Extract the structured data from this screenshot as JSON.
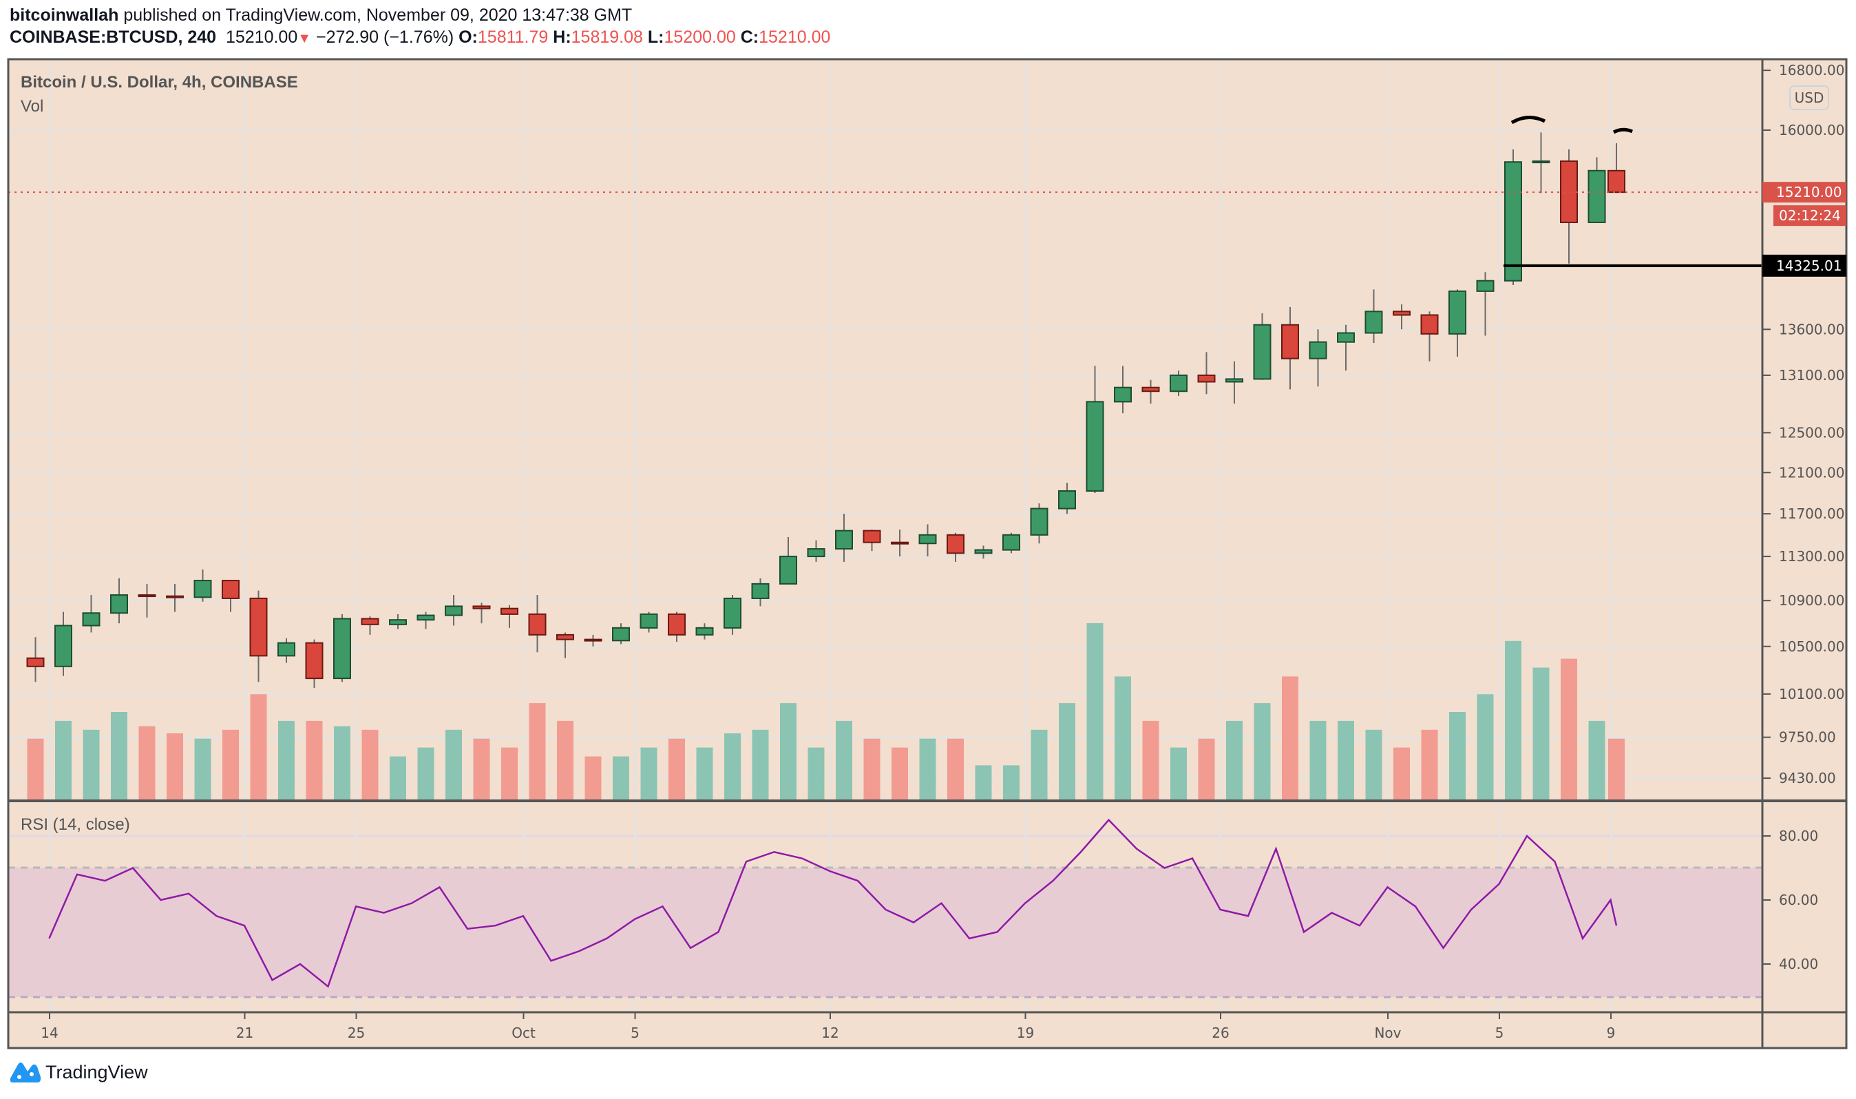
{
  "header": {
    "author": "bitcoinwallah",
    "published_text": "published on TradingView.com, November 09, 2020 13:47:38 GMT",
    "symbol": "COINBASE:BTCUSD, 240",
    "last": "15210.00",
    "change": "−272.90 (−1.76%)",
    "o_label": "O:",
    "o_value": "15811.79",
    "h_label": "H:",
    "h_value": "15819.08",
    "l_label": "L:",
    "l_value": "15200.00",
    "c_label": "C:",
    "c_value": "15210.00"
  },
  "main_pane": {
    "title": "Bitcoin / U.S. Dollar, 4h, COINBASE",
    "volume_label": "Vol",
    "currency_badge": "USD",
    "last_price_label": "15210.00",
    "countdown_label": "02:12:24",
    "level_label": "14325.01"
  },
  "rsi_pane": {
    "title": "RSI (14, close)",
    "ticks": [
      "80.00",
      "60.00",
      "40.00"
    ]
  },
  "footer": {
    "brand": "TradingView"
  },
  "colors": {
    "background": "#f2dfd0",
    "up": "#3d9a66",
    "down": "#d9463b",
    "volume_up": "#8cc4b3",
    "volume_down": "#f29b91",
    "rsi_line": "#8e1aa8",
    "rsi_band": "#e8ccd3",
    "last_price": "#d9534a",
    "level_line": "#000000"
  },
  "chart_data": {
    "type": "candlestick",
    "price_scale": "log",
    "ylim": [
      9257,
      16950
    ],
    "price_ticks": [
      "16800.00",
      "16000.00",
      "13600.00",
      "13100.00",
      "12500.00",
      "12100.00",
      "11700.00",
      "11300.00",
      "10900.00",
      "10500.00",
      "10100.00",
      "9750.00",
      "9430.00"
    ],
    "price_tick_values": [
      16800,
      16000,
      13600,
      13100,
      12500,
      12100,
      11700,
      11300,
      10900,
      10500,
      10100,
      9750,
      9430
    ],
    "time_ticks": [
      {
        "label": "14",
        "date": "2020-09-14"
      },
      {
        "label": "21",
        "date": "2020-09-21"
      },
      {
        "label": "25",
        "date": "2020-09-25"
      },
      {
        "label": "Oct",
        "date": "2020-10-01"
      },
      {
        "label": "5",
        "date": "2020-10-05"
      },
      {
        "label": "12",
        "date": "2020-10-12"
      },
      {
        "label": "19",
        "date": "2020-10-19"
      },
      {
        "label": "26",
        "date": "2020-10-26"
      },
      {
        "label": "Nov",
        "date": "2020-11-01"
      },
      {
        "label": "5",
        "date": "2020-11-05"
      },
      {
        "label": "9",
        "date": "2020-11-09"
      }
    ],
    "grid": true,
    "horizontal_level": 14325.01,
    "last_price": 15210.0,
    "candles": [
      [
        "2020-09-13",
        10400,
        10580,
        10200,
        10330
      ],
      [
        "2020-09-14",
        10330,
        10800,
        10250,
        10680
      ],
      [
        "2020-09-15",
        10680,
        10950,
        10620,
        10790
      ],
      [
        "2020-09-16",
        10790,
        11100,
        10700,
        10950
      ],
      [
        "2020-09-17",
        10950,
        11050,
        10750,
        10940
      ],
      [
        "2020-09-18",
        10940,
        11050,
        10800,
        10930
      ],
      [
        "2020-09-19",
        10930,
        11180,
        10890,
        11080
      ],
      [
        "2020-09-20",
        11080,
        11050,
        10800,
        10920
      ],
      [
        "2020-09-21",
        10920,
        10990,
        10200,
        10420
      ],
      [
        "2020-09-22",
        10420,
        10570,
        10360,
        10530
      ],
      [
        "2020-09-23",
        10530,
        10560,
        10150,
        10230
      ],
      [
        "2020-09-24",
        10230,
        10780,
        10200,
        10740
      ],
      [
        "2020-09-25",
        10740,
        10760,
        10600,
        10690
      ],
      [
        "2020-09-26",
        10690,
        10780,
        10650,
        10730
      ],
      [
        "2020-09-27",
        10730,
        10800,
        10650,
        10770
      ],
      [
        "2020-09-28",
        10770,
        10950,
        10680,
        10850
      ],
      [
        "2020-09-29",
        10850,
        10880,
        10700,
        10830
      ],
      [
        "2020-09-30",
        10830,
        10860,
        10660,
        10780
      ],
      [
        "2020-10-01",
        10780,
        10950,
        10450,
        10600
      ],
      [
        "2020-10-02",
        10600,
        10620,
        10400,
        10560
      ],
      [
        "2020-10-03",
        10560,
        10600,
        10500,
        10550
      ],
      [
        "2020-10-04",
        10550,
        10700,
        10520,
        10660
      ],
      [
        "2020-10-05",
        10660,
        10800,
        10620,
        10780
      ],
      [
        "2020-10-06",
        10780,
        10800,
        10540,
        10600
      ],
      [
        "2020-10-07",
        10600,
        10700,
        10560,
        10660
      ],
      [
        "2020-10-08",
        10660,
        10950,
        10600,
        10920
      ],
      [
        "2020-10-09",
        10920,
        11100,
        10850,
        11050
      ],
      [
        "2020-10-10",
        11050,
        11480,
        11050,
        11300
      ],
      [
        "2020-10-11",
        11300,
        11450,
        11250,
        11370
      ],
      [
        "2020-10-12",
        11370,
        11700,
        11250,
        11540
      ],
      [
        "2020-10-13",
        11540,
        11550,
        11350,
        11430
      ],
      [
        "2020-10-14",
        11430,
        11550,
        11300,
        11420
      ],
      [
        "2020-10-15",
        11420,
        11600,
        11300,
        11500
      ],
      [
        "2020-10-16",
        11500,
        11520,
        11250,
        11330
      ],
      [
        "2020-10-17",
        11330,
        11400,
        11280,
        11360
      ],
      [
        "2020-10-18",
        11360,
        11520,
        11330,
        11500
      ],
      [
        "2020-10-19",
        11500,
        11800,
        11420,
        11750
      ],
      [
        "2020-10-20",
        11750,
        12000,
        11700,
        11920
      ],
      [
        "2020-10-21",
        11920,
        13200,
        11900,
        12820
      ],
      [
        "2020-10-22",
        12820,
        13200,
        12700,
        12970
      ],
      [
        "2020-10-23",
        12970,
        13050,
        12800,
        12930
      ],
      [
        "2020-10-24",
        12930,
        13150,
        12880,
        13100
      ],
      [
        "2020-10-25",
        13100,
        13350,
        12900,
        13030
      ],
      [
        "2020-10-26",
        13030,
        13250,
        12800,
        13060
      ],
      [
        "2020-10-27",
        13060,
        13780,
        13050,
        13650
      ],
      [
        "2020-10-28",
        13650,
        13850,
        12950,
        13280
      ],
      [
        "2020-10-29",
        13280,
        13600,
        12980,
        13460
      ],
      [
        "2020-10-30",
        13460,
        13650,
        13150,
        13560
      ],
      [
        "2020-10-31",
        13560,
        14050,
        13450,
        13800
      ],
      [
        "2020-11-01",
        13800,
        13880,
        13600,
        13760
      ],
      [
        "2020-11-02",
        13760,
        13800,
        13250,
        13550
      ],
      [
        "2020-11-03",
        13550,
        14050,
        13300,
        14030
      ],
      [
        "2020-11-04",
        14030,
        14250,
        13530,
        14150
      ],
      [
        "2020-11-05",
        14150,
        15750,
        14100,
        15590
      ],
      [
        "2020-11-06",
        15590,
        15970,
        15200,
        15600
      ],
      [
        "2020-11-07",
        15600,
        15750,
        14350,
        14840
      ],
      [
        "2020-11-08",
        14840,
        15650,
        14850,
        15480
      ],
      [
        "2020-11-09",
        15480,
        15830,
        15200,
        15210
      ]
    ],
    "volume_relative": [
      35,
      45,
      40,
      50,
      42,
      38,
      35,
      40,
      60,
      45,
      45,
      42,
      40,
      25,
      30,
      40,
      35,
      30,
      55,
      45,
      25,
      25,
      30,
      35,
      30,
      38,
      40,
      55,
      30,
      45,
      35,
      30,
      35,
      35,
      20,
      20,
      40,
      55,
      100,
      70,
      45,
      30,
      35,
      45,
      55,
      70,
      45,
      45,
      40,
      30,
      40,
      50,
      60,
      90,
      75,
      80,
      45,
      35
    ],
    "rsi": {
      "period": 14,
      "upper_band": 70,
      "lower_band": 30,
      "ylim": [
        25,
        91
      ],
      "values": [
        48,
        68,
        66,
        70,
        60,
        62,
        55,
        52,
        35,
        40,
        33,
        58,
        56,
        59,
        64,
        51,
        52,
        55,
        41,
        44,
        48,
        54,
        58,
        45,
        50,
        72,
        75,
        73,
        69,
        66,
        57,
        53,
        59,
        48,
        50,
        59,
        66,
        75,
        85,
        76,
        70,
        73,
        57,
        55,
        76,
        50,
        56,
        52,
        64,
        58,
        45,
        57,
        65,
        80,
        72,
        48,
        60,
        52
      ]
    }
  }
}
